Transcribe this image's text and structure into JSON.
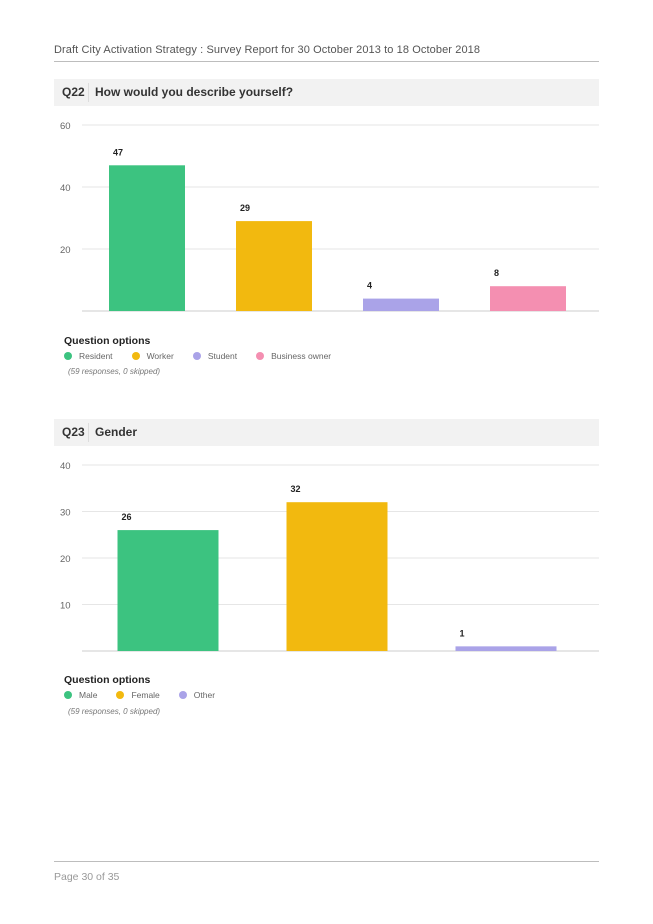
{
  "header": {
    "text": "Draft City Activation Strategy : Survey Report for 30 October 2013 to 18 October 2018"
  },
  "questions": [
    {
      "number": "Q22",
      "title": "How would you describe yourself?",
      "options_title": "Question options",
      "note": "(59 responses, 0 skipped)",
      "legend": [
        {
          "label": "Resident",
          "color": "#3cc380"
        },
        {
          "label": "Worker",
          "color": "#f2b90f"
        },
        {
          "label": "Student",
          "color": "#aaa3e8"
        },
        {
          "label": "Business owner",
          "color": "#f48fb1"
        }
      ]
    },
    {
      "number": "Q23",
      "title": "Gender",
      "options_title": "Question options",
      "note": "(59 responses, 0 skipped)",
      "legend": [
        {
          "label": "Male",
          "color": "#3cc380"
        },
        {
          "label": "Female",
          "color": "#f2b90f"
        },
        {
          "label": "Other",
          "color": "#aaa3e8"
        }
      ]
    }
  ],
  "chart_data": [
    {
      "type": "bar",
      "categories": [
        "Resident",
        "Worker",
        "Student",
        "Business owner"
      ],
      "values": [
        47,
        29,
        4,
        8
      ],
      "colors": [
        "#3cc380",
        "#f2b90f",
        "#aaa3e8",
        "#f48fb1"
      ],
      "yticks": [
        20,
        40,
        60
      ],
      "ylim": [
        0,
        60
      ],
      "grid": true,
      "data_labels": true
    },
    {
      "type": "bar",
      "categories": [
        "Male",
        "Female",
        "Other"
      ],
      "values": [
        26,
        32,
        1
      ],
      "colors": [
        "#3cc380",
        "#f2b90f",
        "#aaa3e8"
      ],
      "yticks": [
        10,
        20,
        30,
        40
      ],
      "ylim": [
        0,
        40
      ],
      "grid": true,
      "data_labels": true
    }
  ],
  "footer": {
    "text": "Page 30 of 35"
  }
}
